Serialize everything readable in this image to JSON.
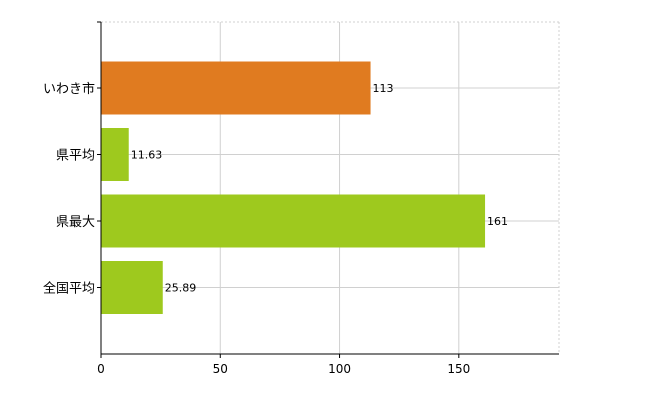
{
  "chart_data": {
    "type": "bar",
    "orientation": "horizontal",
    "categories": [
      "いわき市",
      "県平均",
      "県最大",
      "全国平均"
    ],
    "values": [
      113,
      11.63,
      161,
      25.89
    ],
    "value_labels": [
      "113",
      "11.63",
      "161",
      "25.89"
    ],
    "bar_colors": [
      "#e07b20",
      "#9ec91e",
      "#9ec91e",
      "#9ec91e"
    ],
    "x_ticks": [
      "0",
      "50",
      "100",
      "150"
    ],
    "xlim": [
      0,
      192
    ],
    "grid": true,
    "title": "",
    "xlabel": "",
    "ylabel": ""
  }
}
